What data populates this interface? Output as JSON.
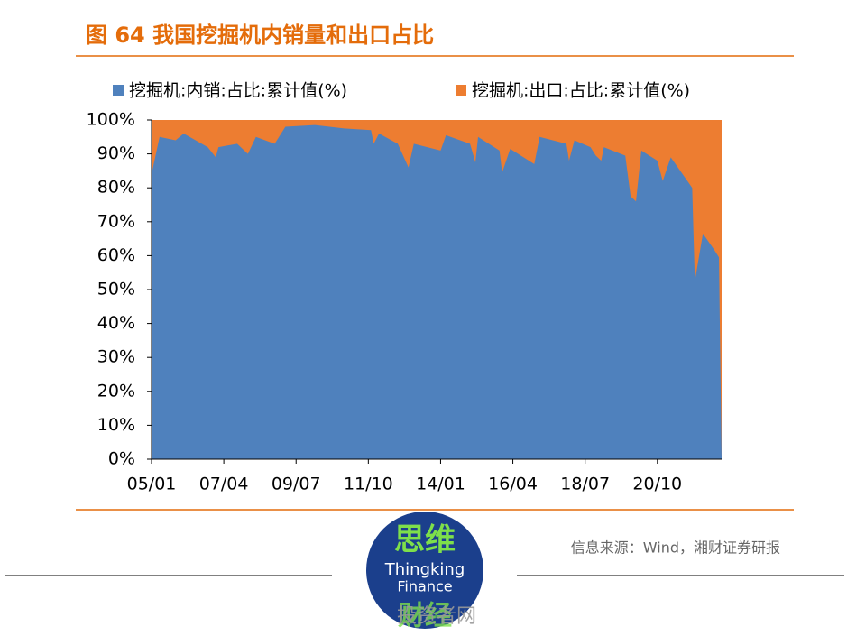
{
  "chart_data": {
    "type": "stacked-area",
    "title": "图 64 我国挖掘机内销量和出口占比",
    "source": "信息来源：Wind，湘财证券研报",
    "watermark": {
      "top": "思维",
      "middle1": "Thingking",
      "middle2": "Finance",
      "bottom": "财经",
      "site": "投资者网"
    },
    "x": [
      "05/01",
      "05/04",
      "05/10",
      "06/01",
      "06/10",
      "07/01",
      "07/02",
      "07/09",
      "08/01",
      "08/04",
      "08/11",
      "09/03",
      "10/02",
      "11/01",
      "11/11",
      "11/12",
      "12/02",
      "12/09",
      "13/01",
      "13/03",
      "14/01",
      "14/03",
      "14/12",
      "15/02",
      "15/03",
      "15/11",
      "15/12",
      "16/03",
      "16/12",
      "17/02",
      "17/12",
      "18/01",
      "18/03",
      "18/09",
      "18/11",
      "19/01",
      "19/02",
      "19/10",
      "19/12",
      "20/02",
      "20/04",
      "20/10",
      "20/12",
      "21/03",
      "21/11",
      "21/12",
      "22/03",
      "22/07",
      "22/09",
      "22/10"
    ],
    "series": [
      {
        "name": "挖掘机:内销:占比:累计值(%)",
        "color": "#4f81bd",
        "values": [
          84,
          95,
          94,
          96,
          92,
          89,
          92,
          93,
          90,
          95,
          93,
          98,
          98.5,
          97.5,
          97,
          93,
          96,
          93,
          86,
          93,
          91,
          95.5,
          93,
          87.5,
          95,
          91,
          84.5,
          91.5,
          87,
          95,
          93,
          88,
          94,
          92,
          89.5,
          88,
          92,
          89.5,
          77.5,
          76,
          91,
          88,
          82,
          89,
          80,
          52.5,
          66.5,
          62,
          59.5,
          0
        ]
      },
      {
        "name": "挖掘机:出口:占比:累计值(%)",
        "color": "#ed7d31",
        "values": [
          16,
          5,
          6,
          4,
          8,
          11,
          8,
          7,
          10,
          5,
          7,
          2,
          1.5,
          2.5,
          3,
          7,
          4,
          7,
          14,
          7,
          9,
          4.5,
          7,
          12.5,
          5,
          9,
          15.5,
          8.5,
          13,
          5,
          7,
          12,
          6,
          8,
          10.5,
          12,
          8,
          10.5,
          22.5,
          24,
          9,
          12,
          18,
          11,
          20,
          47.5,
          33.5,
          38,
          40.5,
          100
        ]
      }
    ],
    "xlim": [
      "05/01",
      "22/10"
    ],
    "xticks": [
      "05/01",
      "07/04",
      "09/07",
      "11/10",
      "14/01",
      "16/04",
      "18/07",
      "20/10"
    ],
    "ylim": [
      0,
      100
    ],
    "yticks": [
      {
        "value": 0,
        "label": "0%"
      },
      {
        "value": 10,
        "label": "10%"
      },
      {
        "value": 20,
        "label": "20%"
      },
      {
        "value": 30,
        "label": "30%"
      },
      {
        "value": 40,
        "label": "40%"
      },
      {
        "value": 50,
        "label": "50%"
      },
      {
        "value": 60,
        "label": "60%"
      },
      {
        "value": 70,
        "label": "70%"
      },
      {
        "value": 80,
        "label": "80%"
      },
      {
        "value": 90,
        "label": "90%"
      },
      {
        "value": 100,
        "label": "100%"
      }
    ]
  }
}
